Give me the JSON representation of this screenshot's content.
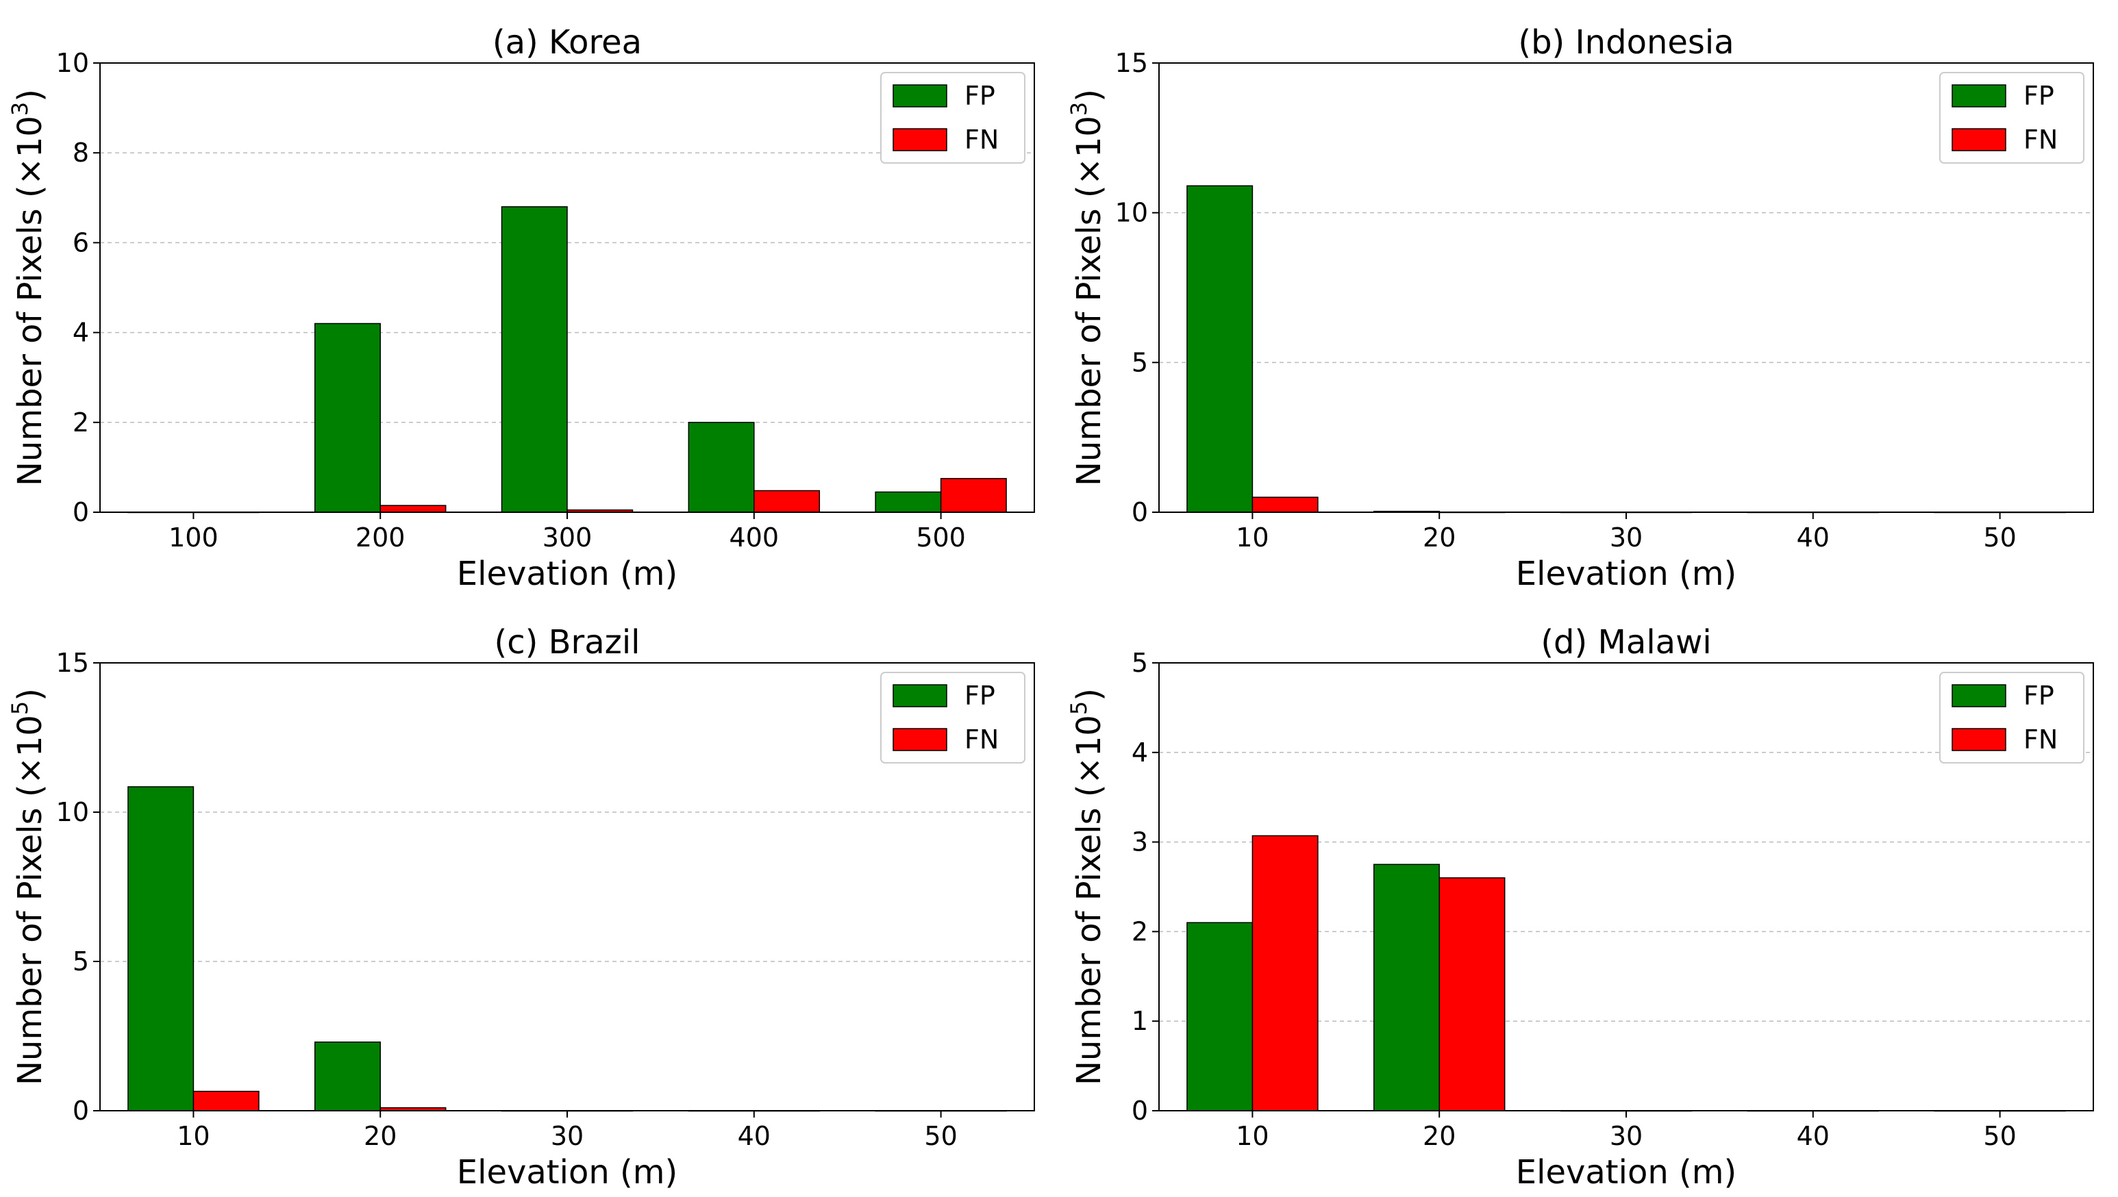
{
  "colors": {
    "fp": "#008000",
    "fn": "#ff0000",
    "edge": "#000000",
    "grid": "#bbbbbb"
  },
  "chart_data": [
    {
      "type": "bar",
      "title": "(a) Korea",
      "xlabel": "Elevation (m)",
      "ylabel": "Number of Pixels (×10",
      "ylabel_exp": "3",
      "categories": [
        "100",
        "200",
        "300",
        "400",
        "500"
      ],
      "yticks": [
        0,
        2,
        4,
        6,
        8,
        10
      ],
      "ylim": [
        0,
        10
      ],
      "legend_position": "top-right",
      "grid": "y",
      "series": [
        {
          "name": "FP",
          "values": [
            0,
            4.2,
            6.8,
            2.0,
            0.45
          ]
        },
        {
          "name": "FN",
          "values": [
            0,
            0.15,
            0.05,
            0.48,
            0.75
          ]
        }
      ]
    },
    {
      "type": "bar",
      "title": "(b) Indonesia",
      "xlabel": "Elevation (m)",
      "ylabel": "Number of Pixels (×10",
      "ylabel_exp": "3",
      "categories": [
        "10",
        "20",
        "30",
        "40",
        "50"
      ],
      "yticks": [
        0,
        5,
        10,
        15
      ],
      "ylim": [
        0,
        15
      ],
      "legend_position": "top-right",
      "grid": "y",
      "series": [
        {
          "name": "FP",
          "values": [
            10.9,
            0.03,
            0,
            0,
            0
          ]
        },
        {
          "name": "FN",
          "values": [
            0.5,
            0,
            0,
            0,
            0
          ]
        }
      ]
    },
    {
      "type": "bar",
      "title": "(c) Brazil",
      "xlabel": "Elevation (m)",
      "ylabel": "Number of Pixels (×10",
      "ylabel_exp": "5",
      "categories": [
        "10",
        "20",
        "30",
        "40",
        "50"
      ],
      "yticks": [
        0,
        5,
        10,
        15
      ],
      "ylim": [
        0,
        15
      ],
      "legend_position": "top-right",
      "grid": "y",
      "series": [
        {
          "name": "FP",
          "values": [
            10.85,
            2.3,
            0,
            0,
            0
          ]
        },
        {
          "name": "FN",
          "values": [
            0.65,
            0.1,
            0,
            0,
            0
          ]
        }
      ]
    },
    {
      "type": "bar",
      "title": "(d) Malawi",
      "xlabel": "Elevation (m)",
      "ylabel": "Number of Pixels (×10",
      "ylabel_exp": "5",
      "categories": [
        "10",
        "20",
        "30",
        "40",
        "50"
      ],
      "yticks": [
        0,
        1,
        2,
        3,
        4,
        5
      ],
      "ylim": [
        0,
        5
      ],
      "legend_position": "top-right",
      "grid": "y",
      "series": [
        {
          "name": "FP",
          "values": [
            2.1,
            2.75,
            0,
            0,
            0
          ]
        },
        {
          "name": "FN",
          "values": [
            3.07,
            2.6,
            0,
            0,
            0
          ]
        }
      ]
    }
  ]
}
